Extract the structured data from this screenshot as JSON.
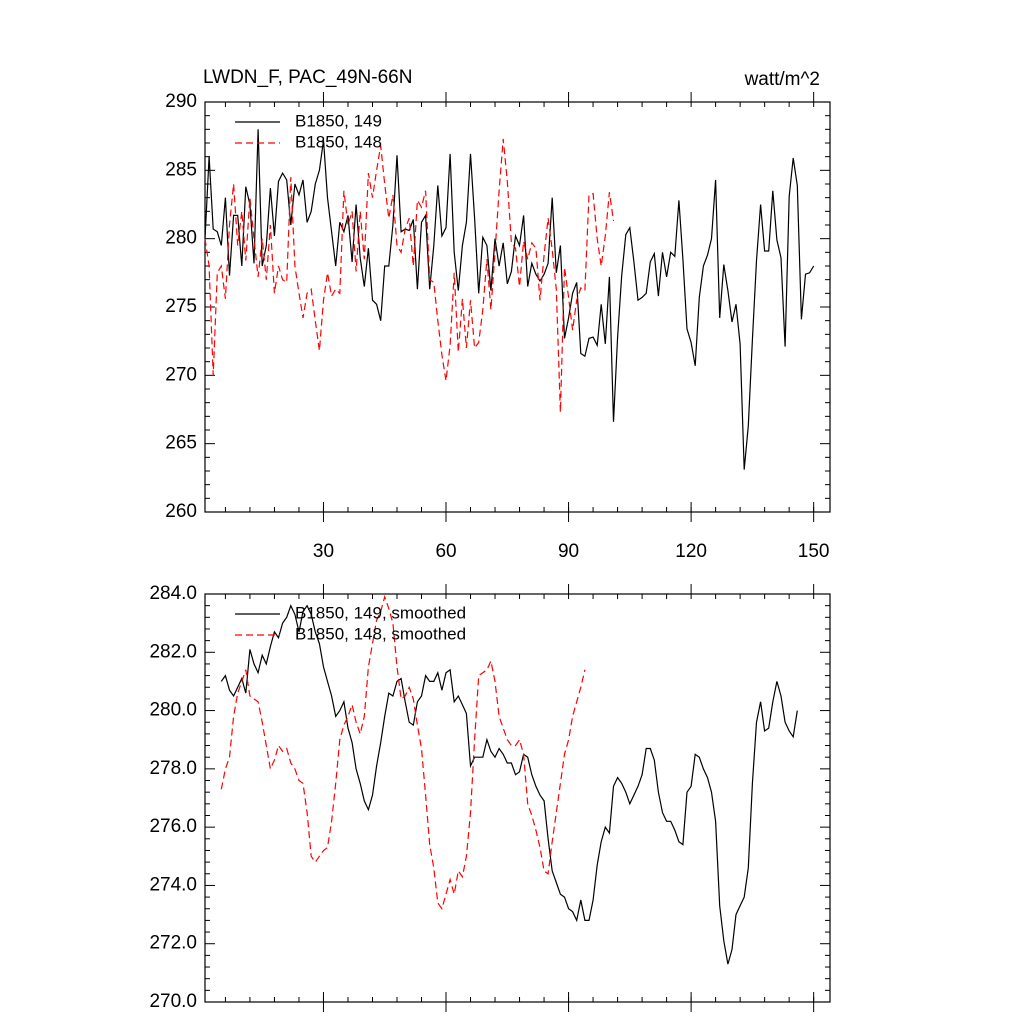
{
  "chart_data": [
    {
      "type": "line",
      "title": "LWDN_F, PAC_49N-66N",
      "units": "watt/m^2",
      "x": [
        1,
        2,
        3,
        4,
        5,
        6,
        7,
        8,
        9,
        10,
        11,
        12,
        13,
        14,
        15,
        16,
        17,
        18,
        19,
        20,
        21,
        22,
        23,
        24,
        25,
        26,
        27,
        28,
        29,
        30,
        31,
        32,
        33,
        34,
        35,
        36,
        37,
        38,
        39,
        40,
        41,
        42,
        43,
        44,
        45,
        46,
        47,
        48,
        49,
        50,
        51,
        52,
        53,
        54,
        55,
        56,
        57,
        58,
        59,
        60,
        61,
        62,
        63,
        64,
        65,
        66,
        67,
        68,
        69,
        70,
        71,
        72,
        73,
        74,
        75,
        76,
        77,
        78,
        79,
        80,
        81,
        82,
        83,
        84,
        85,
        86,
        87,
        88,
        89,
        90,
        91,
        92,
        93,
        94,
        95,
        96,
        97,
        98,
        99,
        100,
        101,
        102,
        103,
        104,
        105,
        106,
        107,
        108,
        109,
        110,
        111,
        112,
        113,
        114,
        115,
        116,
        117,
        118,
        119,
        120,
        121,
        122,
        123,
        124,
        125,
        126,
        127,
        128,
        129,
        130,
        131,
        132,
        133,
        134,
        135,
        136,
        137,
        138,
        139,
        140,
        141,
        142,
        143,
        144,
        145,
        146,
        147,
        148,
        149,
        150
      ],
      "series": [
        {
          "name": "B1850, 149",
          "color": "#000000",
          "style": "solid",
          "values": [
            280,
            286,
            280.7,
            280.5,
            279.5,
            283,
            277.3,
            281.7,
            281.7,
            278,
            283.8,
            282.5,
            278.2,
            288,
            278,
            279.5,
            283.7,
            280.2,
            284.2,
            284.8,
            284.3,
            281,
            284,
            283.2,
            284.3,
            281.2,
            282,
            284,
            285,
            287.2,
            283,
            280.5,
            278,
            281.2,
            280.5,
            281.7,
            278.3,
            282.5,
            278.6,
            276.5,
            279.3,
            275.5,
            275.2,
            274,
            278,
            278,
            281,
            286.1,
            280.5,
            280.7,
            280.6,
            281.4,
            276.3,
            281.2,
            281.7,
            276.3,
            279.5,
            283.9,
            280.2,
            280.8,
            286.2,
            279,
            276.2,
            279.5,
            281.2,
            286.2,
            281.5,
            276,
            280.1,
            279.5,
            276.2,
            280,
            278,
            279.7,
            276.7,
            277.6,
            280.2,
            279.5,
            281.7,
            276.5,
            278.2,
            277.4,
            276.9,
            277.4,
            278.2,
            283,
            277.5,
            279.5,
            272.7,
            274.2,
            276,
            276.8,
            271.6,
            271.4,
            272.7,
            272.8,
            272.2,
            275.2,
            272.3,
            277.2,
            266.6,
            272.8,
            277.3,
            280.3,
            280.8,
            278.3,
            275.5,
            275.7,
            276,
            278.3,
            278.9,
            275.8,
            279,
            277.2,
            279,
            278.7,
            282.8,
            278.5,
            273.4,
            272.4,
            270.7,
            275.7,
            278,
            278.8,
            280,
            284.3,
            274.2,
            278.1,
            276.2,
            273.9,
            275.2,
            272.3,
            263.1,
            266.3,
            272.6,
            278.4,
            282.5,
            279.1,
            279.1,
            283.5,
            279.9,
            278.6,
            272.1,
            283.1,
            285.9,
            283.9,
            274.1,
            277.4,
            277.5,
            278
          ]
        },
        {
          "name": "B1850, 148",
          "color": "#ff0000",
          "style": "dashed",
          "values": [
            280,
            278,
            270,
            277.5,
            278,
            275.6,
            281,
            284,
            279.5,
            282,
            278.4,
            283,
            280,
            277.2,
            280,
            277,
            281,
            276,
            278,
            277,
            276.8,
            284.5,
            278,
            276,
            274.2,
            276,
            276.3,
            274,
            271.8,
            275.5,
            277.5,
            275.8,
            276.3,
            276,
            283.5,
            281,
            282,
            277.6,
            282,
            278.5,
            284.8,
            283,
            285,
            286.8,
            284,
            281.5,
            283.2,
            279.5,
            279,
            280.7,
            281.5,
            278,
            282.8,
            282.3,
            283.5,
            277,
            276.8,
            274,
            271.5,
            269.6,
            272.2,
            277.5,
            271.7,
            275.6,
            272,
            275.5,
            272,
            272.4,
            274.8,
            278.5,
            274.8,
            279,
            283.5,
            287.3,
            284.2,
            279.7,
            279.3,
            276.5,
            279.8,
            278.5,
            279.7,
            279.3,
            275.5,
            278.8,
            281.5,
            279.2,
            276.3,
            267.3,
            277.9,
            275.7,
            273.3,
            275.5,
            276.4,
            276.2,
            283.2,
            283.3,
            280,
            278,
            280.2,
            283.4,
            281.3,
            null,
            null,
            null,
            null,
            null,
            null,
            null,
            null,
            null,
            null,
            null,
            null,
            null,
            null,
            null,
            null,
            null,
            null,
            null,
            null,
            null,
            null,
            null,
            null,
            null,
            null,
            null,
            null,
            null,
            null,
            null,
            null,
            null,
            null,
            null,
            null,
            null,
            null,
            null,
            null,
            null,
            null,
            null,
            null,
            null,
            null,
            null,
            null,
            null
          ]
        }
      ],
      "xlim": [
        1,
        154
      ],
      "xticks": [
        30,
        60,
        90,
        120,
        150
      ],
      "ylim": [
        260,
        290
      ],
      "yticks": [
        260,
        265,
        270,
        275,
        280,
        285,
        290
      ],
      "legend": "upper left"
    },
    {
      "type": "line",
      "x": [
        1,
        2,
        3,
        4,
        5,
        6,
        7,
        8,
        9,
        10,
        11,
        12,
        13,
        14,
        15,
        16,
        17,
        18,
        19,
        20,
        21,
        22,
        23,
        24,
        25,
        26,
        27,
        28,
        29,
        30,
        31,
        32,
        33,
        34,
        35,
        36,
        37,
        38,
        39,
        40,
        41,
        42,
        43,
        44,
        45,
        46,
        47,
        48,
        49,
        50,
        51,
        52,
        53,
        54,
        55,
        56,
        57,
        58,
        59,
        60,
        61,
        62,
        63,
        64,
        65,
        66,
        67,
        68,
        69,
        70,
        71,
        72,
        73,
        74,
        75,
        76,
        77,
        78,
        79,
        80,
        81,
        82,
        83,
        84,
        85,
        86,
        87,
        88,
        89,
        90,
        91,
        92,
        93,
        94,
        95,
        96,
        97,
        98,
        99,
        100,
        101,
        102,
        103,
        104,
        105,
        106,
        107,
        108,
        109,
        110,
        111,
        112,
        113,
        114,
        115,
        116,
        117,
        118,
        119,
        120,
        121,
        122,
        123,
        124,
        125,
        126,
        127,
        128,
        129,
        130,
        131,
        132,
        133,
        134,
        135,
        136,
        137,
        138,
        139,
        140,
        141,
        142,
        143,
        144,
        145,
        146,
        147,
        148,
        149,
        150
      ],
      "series": [
        {
          "name": "B1850, 149, smoothed",
          "color": "#000000",
          "style": "solid",
          "values": [
            null,
            null,
            null,
            null,
            281,
            281.2,
            280.7,
            280.5,
            280.8,
            281.1,
            280.6,
            282.1,
            281.6,
            281.3,
            281.9,
            281.6,
            282.2,
            282.7,
            282.5,
            283,
            283.2,
            283.6,
            283.3,
            282.7,
            283.4,
            283.6,
            283.3,
            282.7,
            282.3,
            281.5,
            281,
            280.5,
            279.8,
            280,
            280.3,
            279.4,
            278.9,
            278,
            277.5,
            276.9,
            276.6,
            277.1,
            278.1,
            278.9,
            279.8,
            280.6,
            280.5,
            281,
            281.1,
            280.3,
            279.6,
            279.5,
            280.3,
            280.5,
            281.2,
            281,
            281,
            281.3,
            280.7,
            281.3,
            281.4,
            280.3,
            280.5,
            280.2,
            279.9,
            278.1,
            278.4,
            278.4,
            278.4,
            279,
            278.6,
            278.4,
            278.7,
            278.5,
            278.2,
            278.2,
            277.8,
            277.9,
            278.5,
            278.4,
            277.8,
            277.4,
            277.1,
            276.9,
            275.6,
            274.5,
            274.1,
            273.7,
            273.6,
            273.2,
            273.1,
            272.8,
            273.5,
            272.8,
            272.8,
            273.5,
            274.7,
            275.5,
            276,
            275.8,
            277.4,
            277.7,
            277.5,
            277.2,
            276.8,
            277.1,
            277.4,
            277.8,
            278.7,
            278.7,
            278.3,
            277.2,
            276.5,
            276.2,
            276.2,
            275.9,
            275.5,
            275.4,
            277.2,
            277.4,
            278.5,
            278.4,
            278,
            277.7,
            277.2,
            276.2,
            273.3,
            272.1,
            271.3,
            271.8,
            273,
            273.3,
            273.6,
            274.6,
            277.5,
            279.6,
            280.3,
            279.3,
            279.4,
            280.3,
            281,
            280.5,
            279.6,
            279.3,
            279.1,
            280,
            null,
            null,
            null,
            null
          ]
        },
        {
          "name": "B1850, 148, smoothed",
          "color": "#ff0000",
          "style": "dashed",
          "values": [
            null,
            null,
            null,
            null,
            277.3,
            278,
            278.4,
            279.8,
            280.6,
            281,
            281.4,
            280.5,
            280.4,
            280.3,
            279.6,
            278.8,
            278,
            278.3,
            278.8,
            278.6,
            278.7,
            278.2,
            278,
            277.6,
            277.5,
            276.5,
            275,
            274.8,
            275,
            275.2,
            275.3,
            276.2,
            277.5,
            279,
            279.5,
            279.8,
            280.2,
            279.6,
            279.2,
            279.8,
            281.5,
            282.3,
            283.1,
            283.4,
            283.9,
            283.5,
            283,
            281.5,
            280.4,
            280.5,
            280.8,
            280.4,
            279.5,
            278.7,
            277.1,
            275.4,
            274.6,
            273.4,
            273.2,
            273.7,
            274.2,
            273.7,
            274.5,
            274.3,
            275,
            276.5,
            279,
            281.2,
            281.3,
            281.4,
            281.7,
            281,
            279.8,
            279.4,
            279,
            278.8,
            278.8,
            279,
            278.5,
            276.8,
            276.4,
            275.9,
            275.3,
            274.5,
            274.4,
            275.5,
            276.5,
            277.5,
            278.5,
            279,
            279.8,
            280.3,
            280.8,
            281.4,
            null,
            null,
            null,
            null,
            null,
            null,
            null,
            null,
            null,
            null,
            null,
            null,
            null,
            null,
            null,
            null,
            null,
            null,
            null,
            null,
            null,
            null,
            null,
            null,
            null,
            null,
            null,
            null,
            null,
            null,
            null,
            null,
            null,
            null,
            null,
            null,
            null,
            null,
            null,
            null,
            null,
            null,
            null,
            null,
            null,
            null,
            null,
            null,
            null,
            null,
            null,
            null,
            null,
            null,
            null,
            null
          ]
        }
      ],
      "xlim": [
        1,
        154
      ],
      "xticks": [
        30,
        60,
        90,
        120,
        150
      ],
      "ylim": [
        270,
        284
      ],
      "yticks": [
        {
          "value": 270,
          "label": "270.0"
        },
        {
          "value": 272,
          "label": "272.0"
        },
        {
          "value": 274,
          "label": "274.0"
        },
        {
          "value": 276,
          "label": "276.0"
        },
        {
          "value": 278,
          "label": "278.0"
        },
        {
          "value": 280,
          "label": "280.0"
        },
        {
          "value": 282,
          "label": "282.0"
        },
        {
          "value": 284,
          "label": "284.0"
        }
      ],
      "legend": "upper left"
    }
  ]
}
